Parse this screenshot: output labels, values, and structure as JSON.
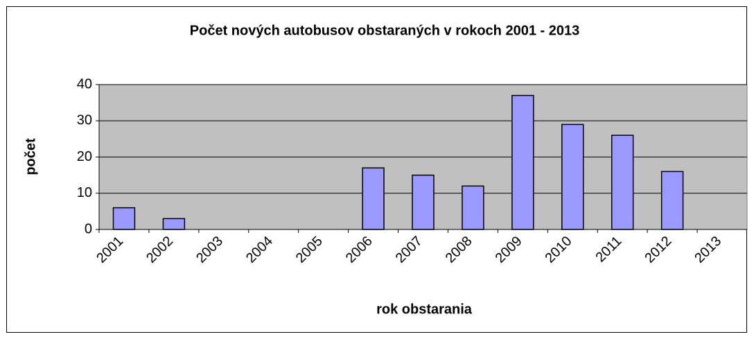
{
  "chart_data": {
    "type": "bar",
    "title": "Počet nových autobusov obstaraných v rokoch 2001 - 2013",
    "x_label": "rok obstarania",
    "y_label": "počet",
    "categories": [
      "2001",
      "2002",
      "2003",
      "2004",
      "2005",
      "2006",
      "2007",
      "2008",
      "2009",
      "2010",
      "2011",
      "2012",
      "2013"
    ],
    "values": [
      6,
      3,
      0,
      0,
      0,
      17,
      15,
      12,
      37,
      29,
      26,
      16,
      0
    ],
    "color": "#9999ff",
    "ylim": [
      0,
      40
    ],
    "yticks": [
      0,
      10,
      20,
      30,
      40
    ],
    "grid": true
  }
}
